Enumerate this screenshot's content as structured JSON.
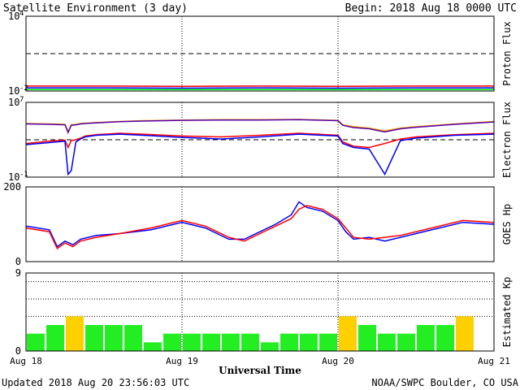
{
  "header": {
    "title": "Satellite Environment (3 day)",
    "begin": "Begin:  2018 Aug 18 0000 UTC"
  },
  "footer": {
    "updated": "Updated 2018 Aug 20 23:56:03 UTC",
    "source": "NOAA/SWPC Boulder, CO USA"
  },
  "x_axis": {
    "label": "Universal Time",
    "ticks": [
      "Aug 18",
      "Aug 19",
      "Aug 20",
      "Aug 21"
    ]
  },
  "colors": {
    "red": "#ff0000",
    "blue": "#0000ff",
    "green": "#00ee00",
    "orange": "#ffa500",
    "purple": "#5500aa",
    "kp_green": "#22ee22",
    "kp_yellow": "#ffd000",
    "frame": "#000000"
  },
  "chart_data": [
    {
      "type": "line",
      "ylabel": "Proton Flux",
      "yscale": "log",
      "ylim": [
        0.01,
        10000
      ],
      "ytick_labels": [
        {
          "base": "10",
          "exp": "4"
        },
        {
          "base": "10",
          "exp": "-2"
        }
      ],
      "threshold": 10,
      "x": [
        0,
        0.5,
        1,
        1.5,
        2,
        2.5,
        3
      ],
      "series": [
        {
          "color": "#ff0000",
          "values": [
            0.025,
            0.025,
            0.024,
            0.025,
            0.024,
            0.025,
            0.025
          ]
        },
        {
          "color": "#0000ff",
          "values": [
            0.018,
            0.018,
            0.017,
            0.018,
            0.017,
            0.018,
            0.018
          ]
        },
        {
          "color": "#00ee00",
          "values": [
            0.013,
            0.013,
            0.013,
            0.013,
            0.013,
            0.013,
            0.013
          ]
        }
      ]
    },
    {
      "type": "line",
      "ylabel": "Electron Flux",
      "yscale": "log",
      "ylim": [
        0.1,
        10000000
      ],
      "ytick_labels": [
        {
          "base": "10",
          "exp": "7"
        },
        {
          "base": "10",
          "exp": "-1"
        }
      ],
      "threshold": 1000,
      "x": [
        0,
        0.15,
        0.25,
        0.27,
        0.29,
        0.32,
        0.35,
        0.38,
        0.45,
        0.6,
        0.75,
        1,
        1.25,
        1.5,
        1.75,
        2,
        2.03,
        2.1,
        2.2,
        2.3,
        2.4,
        2.5,
        2.75,
        3
      ],
      "series": [
        {
          "color": "#ffa500",
          "values": [
            55000,
            50000,
            45000,
            8000,
            40000,
            45000,
            55000,
            60000,
            70000,
            90000,
            110000,
            130000,
            140000,
            140000,
            150000,
            120000,
            40000,
            25000,
            18000,
            9000,
            18000,
            25000,
            50000,
            90000
          ]
        },
        {
          "color": "#5500aa",
          "values": [
            50000,
            45000,
            40000,
            6000,
            35000,
            40000,
            50000,
            55000,
            65000,
            85000,
            100000,
            120000,
            130000,
            130000,
            140000,
            110000,
            35000,
            20000,
            15000,
            7000,
            15000,
            22000,
            45000,
            80000
          ]
        },
        {
          "color": "#ff0000",
          "values": [
            400,
            700,
            900,
            150,
            800,
            1000,
            1500,
            2500,
            3500,
            5000,
            4000,
            2500,
            2000,
            3000,
            5000,
            3000,
            600,
            200,
            150,
            400,
            1200,
            2000,
            3500,
            5000
          ]
        },
        {
          "color": "#0000ff",
          "values": [
            300,
            500,
            700,
            0.2,
            0.5,
            600,
            1200,
            2000,
            3000,
            4000,
            3000,
            1800,
            1200,
            2000,
            4000,
            2500,
            400,
            150,
            100,
            0.2,
            800,
            1500,
            3000,
            4000
          ]
        }
      ]
    },
    {
      "type": "line",
      "ylabel": "GOES Hp",
      "ylim": [
        0,
        200
      ],
      "yticks": [
        0,
        200
      ],
      "x": [
        0,
        0.15,
        0.2,
        0.25,
        0.3,
        0.35,
        0.45,
        0.6,
        0.8,
        1,
        1.15,
        1.3,
        1.4,
        1.5,
        1.6,
        1.7,
        1.75,
        1.8,
        1.9,
        2,
        2.05,
        2.1,
        2.2,
        2.3,
        2.4,
        2.6,
        2.8,
        3
      ],
      "series": [
        {
          "color": "#0000ff",
          "values": [
            95,
            85,
            40,
            55,
            45,
            60,
            70,
            75,
            85,
            105,
            90,
            60,
            60,
            80,
            100,
            125,
            160,
            145,
            135,
            110,
            80,
            60,
            65,
            55,
            65,
            85,
            105,
            100
          ]
        },
        {
          "color": "#ff0000",
          "values": [
            90,
            80,
            35,
            50,
            40,
            55,
            65,
            75,
            90,
            110,
            95,
            65,
            55,
            75,
            95,
            115,
            140,
            150,
            140,
            115,
            90,
            65,
            60,
            65,
            70,
            90,
            110,
            105
          ]
        }
      ]
    },
    {
      "type": "bar",
      "ylabel": "Estimated Kp",
      "ylim": [
        0,
        9
      ],
      "yticks": [
        0,
        9
      ],
      "gridlines": [
        4,
        6,
        8
      ],
      "values": [
        2,
        3,
        4,
        3,
        3,
        3,
        1,
        2,
        2,
        2,
        2,
        2,
        1,
        2,
        2,
        2,
        4,
        3,
        2,
        2,
        3,
        3,
        4
      ],
      "bar_colors": [
        "#22ee22",
        "#22ee22",
        "#ffd000",
        "#22ee22",
        "#22ee22",
        "#22ee22",
        "#22ee22",
        "#22ee22",
        "#22ee22",
        "#22ee22",
        "#22ee22",
        "#22ee22",
        "#22ee22",
        "#22ee22",
        "#22ee22",
        "#22ee22",
        "#ffd000",
        "#22ee22",
        "#22ee22",
        "#22ee22",
        "#22ee22",
        "#22ee22",
        "#ffd000"
      ]
    }
  ]
}
